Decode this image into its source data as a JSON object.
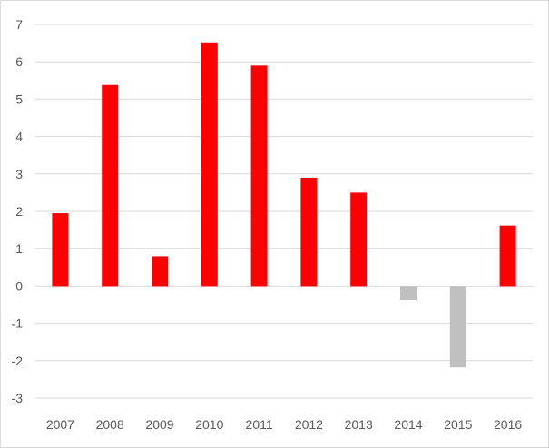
{
  "chart_data": {
    "type": "bar",
    "categories": [
      "2007",
      "2008",
      "2009",
      "2010",
      "2011",
      "2012",
      "2013",
      "2014",
      "2015",
      "2016"
    ],
    "values": [
      1.95,
      5.38,
      0.8,
      6.52,
      5.9,
      2.9,
      2.5,
      -0.38,
      -2.18,
      1.62
    ],
    "ylim": [
      -3,
      7
    ],
    "yticks": [
      -3,
      -2,
      -1,
      0,
      1,
      2,
      3,
      4,
      5,
      6,
      7
    ],
    "grid": true,
    "colors": {
      "positive": "#ff0000",
      "negative": "#c0c0c0",
      "grid": "#d9d9d9",
      "text": "#595959"
    }
  }
}
